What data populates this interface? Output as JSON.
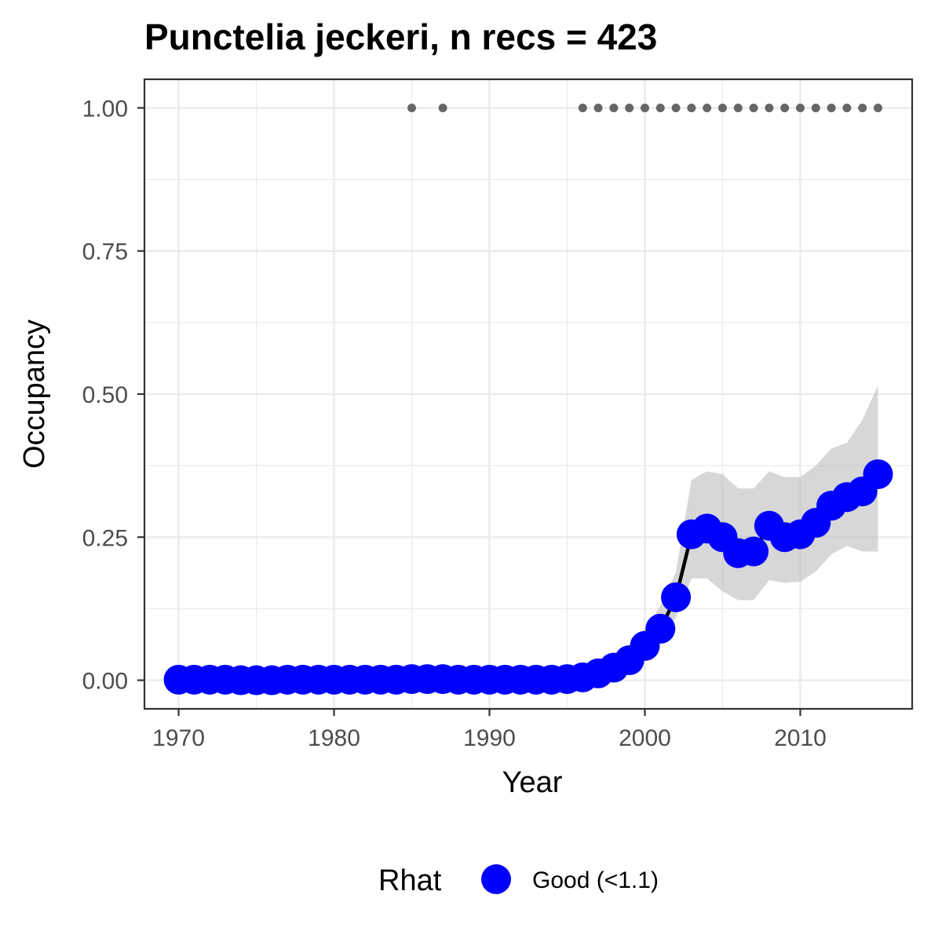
{
  "chart_data": {
    "type": "line",
    "title": "Punctelia jeckeri, n recs = 423",
    "xlabel": "Year",
    "ylabel": "Occupancy",
    "xlim": [
      1967.8,
      2017.2
    ],
    "ylim": [
      -0.05,
      1.05
    ],
    "x_ticks": [
      1970,
      1980,
      1990,
      2000,
      2010
    ],
    "x_tick_labels": [
      "1970",
      "1980",
      "1990",
      "2000",
      "2010"
    ],
    "y_ticks": [
      0,
      0.25,
      0.5,
      0.75,
      1.0
    ],
    "y_tick_labels": [
      "0.00",
      "0.25",
      "0.50",
      "0.75",
      "1.00"
    ],
    "grid": true,
    "legend_position": "bottom",
    "legend_title": "Rhat",
    "legend_entries": [
      {
        "label": "Good (<1.1)",
        "color": "#0000ff"
      }
    ],
    "series": [
      {
        "name": "Good (<1.1)",
        "color": "#0000ff",
        "x": [
          1970,
          1971,
          1972,
          1973,
          1974,
          1975,
          1976,
          1977,
          1978,
          1979,
          1980,
          1981,
          1982,
          1983,
          1984,
          1985,
          1986,
          1987,
          1988,
          1989,
          1990,
          1991,
          1992,
          1993,
          1994,
          1995,
          1996,
          1997,
          1998,
          1999,
          2000,
          2001,
          2002,
          2003,
          2004,
          2005,
          2006,
          2007,
          2008,
          2009,
          2010,
          2011,
          2012,
          2013,
          2014,
          2015
        ],
        "y": [
          0.001,
          0.001,
          0.001,
          0.001,
          0.0,
          0.0,
          0.0,
          0.001,
          0.001,
          0.001,
          0.001,
          0.001,
          0.001,
          0.001,
          0.001,
          0.002,
          0.002,
          0.002,
          0.001,
          0.001,
          0.001,
          0.001,
          0.001,
          0.001,
          0.001,
          0.002,
          0.005,
          0.012,
          0.022,
          0.035,
          0.06,
          0.09,
          0.145,
          0.255,
          0.265,
          0.25,
          0.222,
          0.225,
          0.27,
          0.25,
          0.255,
          0.275,
          0.305,
          0.32,
          0.33,
          0.36
        ],
        "lower": [
          0.0,
          0.0,
          0.0,
          0.0,
          0.0,
          0.0,
          0.0,
          0.0,
          0.0,
          0.0,
          0.0,
          0.0,
          0.0,
          0.0,
          0.0,
          0.0,
          0.0,
          0.0,
          0.0,
          0.0,
          0.0,
          0.0,
          0.0,
          0.0,
          0.0,
          0.0,
          0.0,
          0.003,
          0.01,
          0.02,
          0.04,
          0.065,
          0.11,
          0.178,
          0.178,
          0.155,
          0.14,
          0.14,
          0.175,
          0.17,
          0.172,
          0.19,
          0.22,
          0.235,
          0.225,
          0.225
        ],
        "upper": [
          0.003,
          0.003,
          0.003,
          0.003,
          0.002,
          0.002,
          0.002,
          0.003,
          0.003,
          0.003,
          0.003,
          0.003,
          0.003,
          0.003,
          0.003,
          0.005,
          0.005,
          0.005,
          0.003,
          0.003,
          0.003,
          0.003,
          0.003,
          0.003,
          0.003,
          0.006,
          0.012,
          0.025,
          0.04,
          0.055,
          0.09,
          0.13,
          0.19,
          0.35,
          0.365,
          0.36,
          0.335,
          0.335,
          0.365,
          0.355,
          0.355,
          0.375,
          0.405,
          0.415,
          0.455,
          0.515
        ]
      }
    ],
    "record_years": {
      "y": 1.0,
      "color": "#666666",
      "x": [
        1985,
        1987,
        1996,
        1997,
        1998,
        1999,
        2000,
        2001,
        2002,
        2003,
        2004,
        2005,
        2006,
        2007,
        2008,
        2009,
        2010,
        2011,
        2012,
        2013,
        2014,
        2015
      ]
    }
  }
}
